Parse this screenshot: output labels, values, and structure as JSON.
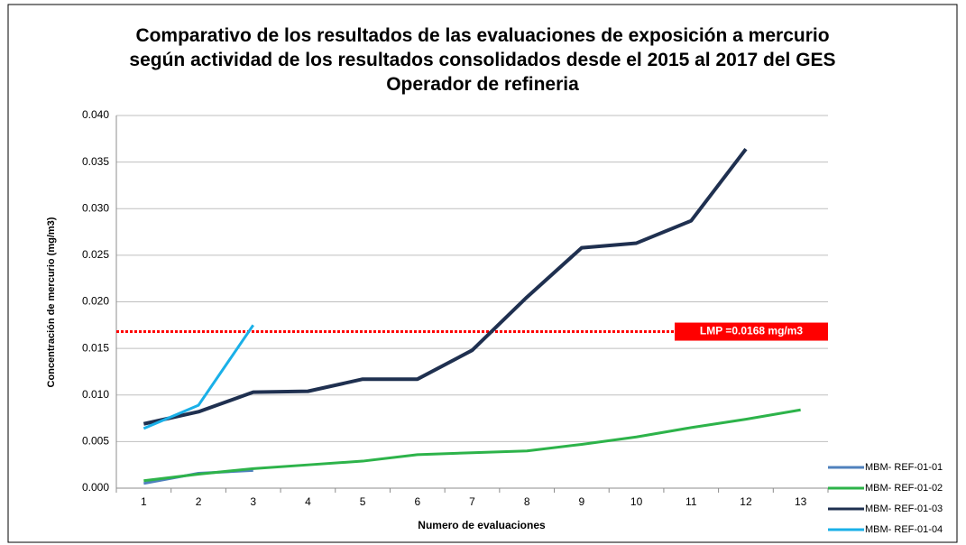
{
  "chart_data": {
    "type": "line",
    "title": "Comparativo de los resultados de las evaluaciones de exposición a mercurio según actividad de los resultados consolidados desde el 2015 al 2017 del GES Operador de refineria",
    "x_label": "Numero de evaluaciones",
    "y_label": "Concentración de mercurio (mg/m3)",
    "categories": [
      "1",
      "2",
      "3",
      "4",
      "5",
      "6",
      "7",
      "8",
      "9",
      "10",
      "11",
      "12",
      "13"
    ],
    "series": [
      {
        "name": "MBM- REF-01-01",
        "color": "#4f81bd",
        "values": [
          0.0005,
          0.0016,
          0.0019,
          null,
          null,
          null,
          null,
          null,
          null,
          null,
          null,
          null,
          null
        ]
      },
      {
        "name": "MBM- REF-01-02",
        "color": "#2db34a",
        "values": [
          0.0008,
          0.0015,
          0.0021,
          0.0025,
          0.0029,
          0.0036,
          0.0038,
          0.004,
          0.0047,
          0.0055,
          0.0065,
          0.0074,
          0.0084
        ]
      },
      {
        "name": "MBM- REF-01-03",
        "color": "#1f3050",
        "values": [
          0.0069,
          0.0082,
          0.0103,
          0.0104,
          0.0117,
          0.0117,
          0.0148,
          0.0205,
          0.0258,
          0.0263,
          0.0287,
          0.0364,
          null
        ]
      },
      {
        "name": "MBM- REF-01-04",
        "color": "#1ab0e8",
        "values": [
          0.0064,
          0.0089,
          0.0175,
          null,
          null,
          null,
          null,
          null,
          null,
          null,
          null,
          null,
          null
        ]
      }
    ],
    "threshold": {
      "value": 0.0168,
      "label": "LMP =0.0168 mg/m3",
      "color": "#ff0000"
    },
    "ylim": [
      0,
      0.04
    ],
    "yticks": [
      {
        "value": 0,
        "label": "0.000"
      },
      {
        "value": 0.005,
        "label": "0.005"
      },
      {
        "value": 0.01,
        "label": "0.010"
      },
      {
        "value": 0.015,
        "label": "0.015"
      },
      {
        "value": 0.02,
        "label": "0.020"
      },
      {
        "value": 0.025,
        "label": "0.025"
      },
      {
        "value": 0.03,
        "label": "0.030"
      },
      {
        "value": 0.035,
        "label": "0.035"
      },
      {
        "value": 0.04,
        "label": "0.040"
      }
    ],
    "grid": true,
    "legend": "bottom-right"
  }
}
